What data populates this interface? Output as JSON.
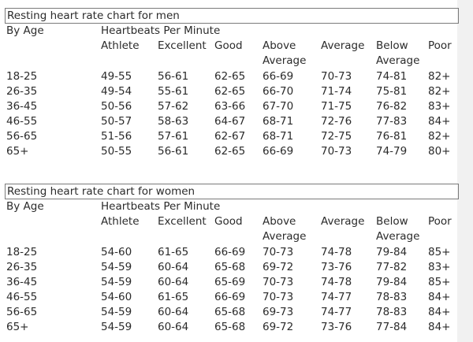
{
  "column_labels": {
    "by_age": "By Age",
    "group": "Heartbeats Per Minute",
    "athlete": "Athlete",
    "excellent": "Excellent",
    "good": "Good",
    "above_average_1": "Above",
    "above_average_2": "Average",
    "average": "Average",
    "below_average_1": "Below",
    "below_average_2": "Average",
    "poor": "Poor"
  },
  "tables": [
    {
      "title": "Resting heart rate chart for men",
      "rows": [
        [
          "18-25",
          "49-55",
          "56-61",
          "62-65",
          "66-69",
          "70-73",
          "74-81",
          "82+"
        ],
        [
          "26-35",
          "49-54",
          "55-61",
          "62-65",
          "66-70",
          "71-74",
          "75-81",
          "82+"
        ],
        [
          "36-45",
          "50-56",
          "57-62",
          "63-66",
          "67-70",
          "71-75",
          "76-82",
          "83+"
        ],
        [
          "46-55",
          "50-57",
          "58-63",
          "64-67",
          "68-71",
          "72-76",
          "77-83",
          "84+"
        ],
        [
          "56-65",
          "51-56",
          "57-61",
          "62-67",
          "68-71",
          "72-75",
          "76-81",
          "82+"
        ],
        [
          "65+",
          "50-55",
          "56-61",
          "62-65",
          "66-69",
          "70-73",
          "74-79",
          "80+"
        ]
      ]
    },
    {
      "title": "Resting heart rate chart for women",
      "rows": [
        [
          "18-25",
          "54-60",
          "61-65",
          "66-69",
          "70-73",
          "74-78",
          "79-84",
          "85+"
        ],
        [
          "26-35",
          "54-59",
          "60-64",
          "65-68",
          "69-72",
          "73-76",
          "77-82",
          "83+"
        ],
        [
          "36-45",
          "54-59",
          "60-64",
          "65-69",
          "70-73",
          "74-78",
          "79-84",
          "85+"
        ],
        [
          "46-55",
          "54-60",
          "61-65",
          "66-69",
          "70-73",
          "74-77",
          "78-83",
          "84+"
        ],
        [
          "56-65",
          "54-59",
          "60-64",
          "65-68",
          "69-73",
          "74-77",
          "78-83",
          "84+"
        ],
        [
          "65+",
          "54-59",
          "60-64",
          "65-68",
          "69-72",
          "73-76",
          "77-84",
          "84+"
        ]
      ]
    }
  ]
}
